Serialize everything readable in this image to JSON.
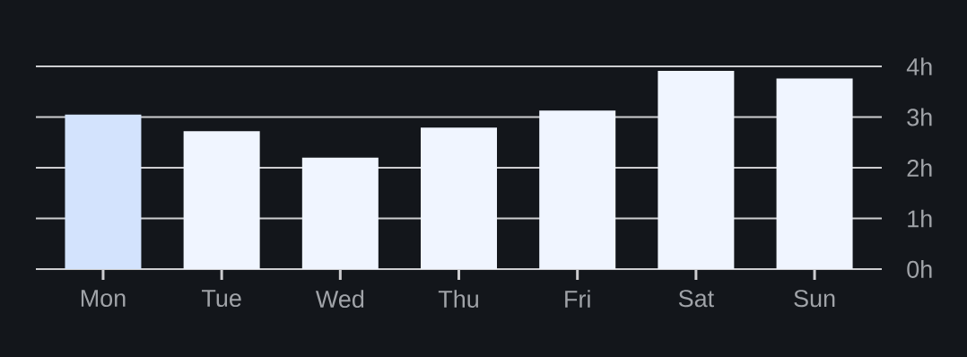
{
  "chart_data": {
    "type": "bar",
    "categories": [
      "Mon",
      "Tue",
      "Wed",
      "Thu",
      "Fri",
      "Sat",
      "Sun"
    ],
    "values": [
      3.05,
      2.72,
      2.2,
      2.79,
      3.13,
      3.91,
      3.76
    ],
    "colors": [
      "#d3e3fd",
      "#f0f5ff",
      "#f0f5ff",
      "#f0f5ff",
      "#f0f5ff",
      "#f0f5ff",
      "#f0f5ff"
    ],
    "ylim": [
      0,
      4
    ],
    "yticks": [
      {
        "value": 0,
        "label": "0h"
      },
      {
        "value": 1,
        "label": "1h"
      },
      {
        "value": 2,
        "label": "2h"
      },
      {
        "value": 3,
        "label": "3h"
      },
      {
        "value": 4,
        "label": "4h"
      }
    ],
    "grid": "y"
  }
}
